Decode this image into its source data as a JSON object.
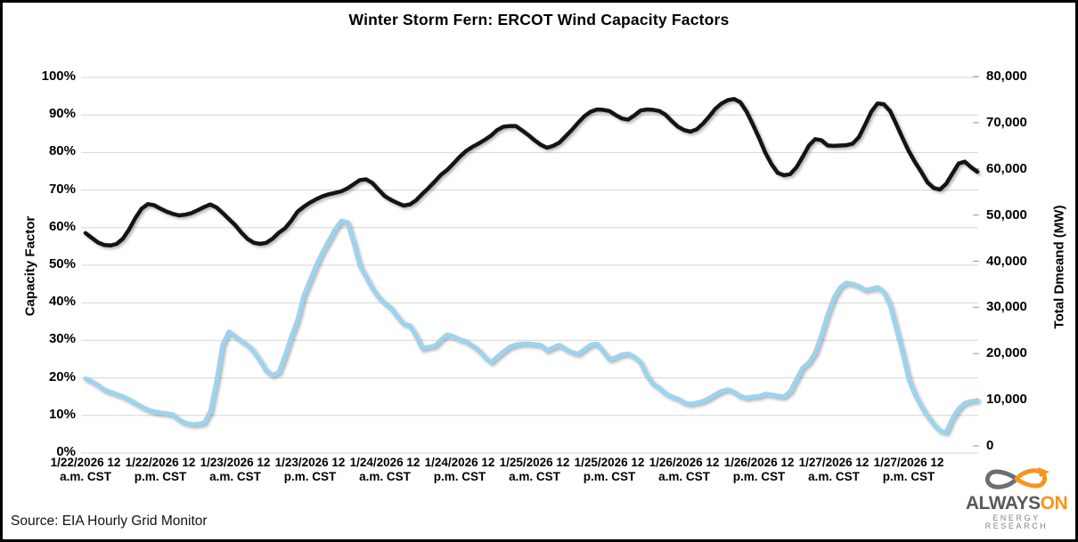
{
  "title": "Winter Storm Fern: ERCOT Wind Capacity Factors",
  "source_note": "Source: EIA Hourly Grid Monitor",
  "logo": {
    "word_gray": "ALWAYS",
    "word_orange": "ON",
    "subtitle": "ENERGY RESEARCH",
    "color_gray": "#58595B",
    "color_orange": "#F7941E"
  },
  "colors": {
    "capacity_factor_line": "#9CD3EE",
    "demand_line": "#141414",
    "gridline": "#D6D6D6",
    "background": "#FFFFFF"
  },
  "chart_data": {
    "type": "line",
    "title": "Winter Storm Fern: ERCOT Wind Capacity Factors",
    "grid": true,
    "legend": "none",
    "left_axis": {
      "title": "Capacity Factor",
      "min": 0,
      "max": 100,
      "ticks": [
        "100%",
        "90%",
        "80%",
        "70%",
        "60%",
        "50%",
        "40%",
        "30%",
        "20%",
        "10%",
        "0%"
      ]
    },
    "right_axis": {
      "title": "Total Dmeand (MW)",
      "min": 0,
      "max": 80000,
      "ticks": [
        "80,000",
        "70,000",
        "60,000",
        "50,000",
        "40,000",
        "30,000",
        "20,000",
        "10,000",
        "0"
      ]
    },
    "x_axis": {
      "unit": "hours",
      "start_hour": 0,
      "step_hours": 1,
      "tick_interval_hours": 12,
      "labels": [
        {
          "line1": "1/22/2026 12",
          "line2": "a.m. CST"
        },
        {
          "line1": "1/22/2026 12",
          "line2": "p.m. CST"
        },
        {
          "line1": "1/23/2026 12",
          "line2": "a.m. CST"
        },
        {
          "line1": "1/23/2026 12",
          "line2": "p.m. CST"
        },
        {
          "line1": "1/24/2026 12",
          "line2": "a.m. CST"
        },
        {
          "line1": "1/24/2026 12",
          "line2": "p.m. CST"
        },
        {
          "line1": "1/25/2026 12",
          "line2": "a.m. CST"
        },
        {
          "line1": "1/25/2026 12",
          "line2": "p.m. CST"
        },
        {
          "line1": "1/26/2026 12",
          "line2": "a.m. CST"
        },
        {
          "line1": "1/26/2026 12",
          "line2": "p.m. CST"
        },
        {
          "line1": "1/27/2026 12",
          "line2": "a.m. CST"
        },
        {
          "line1": "1/27/2026 12",
          "line2": "p.m. CST"
        }
      ]
    },
    "series": [
      {
        "name": "Capacity Factor",
        "axis": "left",
        "color": "#9CD3EE",
        "stroke_width": 5,
        "values": [
          19.8,
          19.0,
          18.0,
          16.8,
          16.2,
          15.6,
          15.0,
          14.2,
          13.2,
          12.3,
          11.5,
          11.0,
          10.7,
          10.5,
          10.2,
          8.8,
          8.0,
          7.6,
          7.7,
          8.0,
          11.0,
          19.0,
          29.0,
          32.3,
          31.0,
          29.8,
          28.7,
          27.0,
          24.5,
          21.8,
          20.7,
          21.5,
          26.0,
          31.0,
          35.5,
          42.0,
          46.0,
          50.0,
          53.5,
          56.5,
          59.5,
          61.8,
          61.4,
          56.0,
          49.8,
          46.8,
          43.8,
          41.5,
          39.8,
          38.5,
          36.3,
          34.4,
          33.9,
          31.2,
          27.8,
          28.2,
          28.5,
          30.2,
          31.5,
          31.0,
          30.2,
          29.7,
          28.6,
          27.4,
          25.6,
          24.1,
          25.6,
          27.0,
          28.2,
          28.8,
          29.1,
          29.1,
          28.9,
          28.7,
          27.3,
          28.1,
          28.7,
          27.6,
          26.8,
          26.4,
          27.6,
          28.8,
          29.1,
          27.1,
          24.9,
          25.4,
          26.2,
          26.4,
          25.6,
          24.1,
          20.6,
          18.4,
          17.3,
          15.8,
          15.0,
          14.4,
          13.4,
          13.0,
          13.4,
          13.8,
          14.6,
          15.6,
          16.5,
          16.9,
          16.2,
          15.1,
          14.7,
          15.0,
          15.1,
          15.7,
          15.5,
          15.2,
          15.0,
          16.4,
          19.6,
          22.7,
          24.1,
          26.7,
          31.4,
          36.9,
          41.3,
          44.1,
          45.3,
          45.0,
          44.4,
          43.4,
          43.7,
          44.1,
          42.9,
          39.4,
          33.1,
          26.8,
          19.7,
          15.6,
          12.5,
          9.8,
          7.7,
          5.9,
          5.5,
          9.2,
          11.8,
          13.3,
          13.8,
          14.0
        ]
      },
      {
        "name": "Total Dmeand (MW)",
        "axis": "right",
        "color": "#141414",
        "stroke_width": 4.5,
        "values": [
          46100,
          45050,
          44070,
          43500,
          43420,
          43750,
          44890,
          46920,
          49360,
          51390,
          52370,
          52130,
          51390,
          50740,
          50250,
          49930,
          50090,
          50420,
          51070,
          51720,
          52290,
          51640,
          50420,
          49120,
          47810,
          46190,
          44800,
          43990,
          43750,
          43990,
          44890,
          46190,
          47160,
          48790,
          50740,
          51800,
          52700,
          53430,
          54080,
          54490,
          54810,
          55140,
          55790,
          56680,
          57580,
          57740,
          56930,
          55460,
          54080,
          53260,
          52610,
          52040,
          52290,
          53180,
          54570,
          55870,
          57250,
          58720,
          59770,
          61160,
          62620,
          63840,
          64740,
          65470,
          66280,
          67180,
          68400,
          69130,
          69290,
          69290,
          68310,
          67340,
          66200,
          65220,
          64570,
          64980,
          65710,
          67090,
          68480,
          70020,
          71410,
          72380,
          72870,
          72790,
          72540,
          71650,
          70920,
          70670,
          71570,
          72630,
          72870,
          72790,
          72540,
          71730,
          70350,
          69130,
          68400,
          68070,
          68560,
          69780,
          71320,
          73030,
          74170,
          74900,
          75150,
          74420,
          72380,
          69620,
          66690,
          63520,
          60990,
          59120,
          58630,
          58880,
          60340,
          62620,
          65060,
          66440,
          66200,
          65060,
          64980,
          65060,
          65140,
          65470,
          66850,
          69540,
          72380,
          74170,
          74010,
          72540,
          69700,
          66690,
          63840,
          61480,
          59370,
          57090,
          55870,
          55540,
          56760,
          58960,
          61160,
          61560,
          60340,
          59370
        ]
      }
    ]
  }
}
